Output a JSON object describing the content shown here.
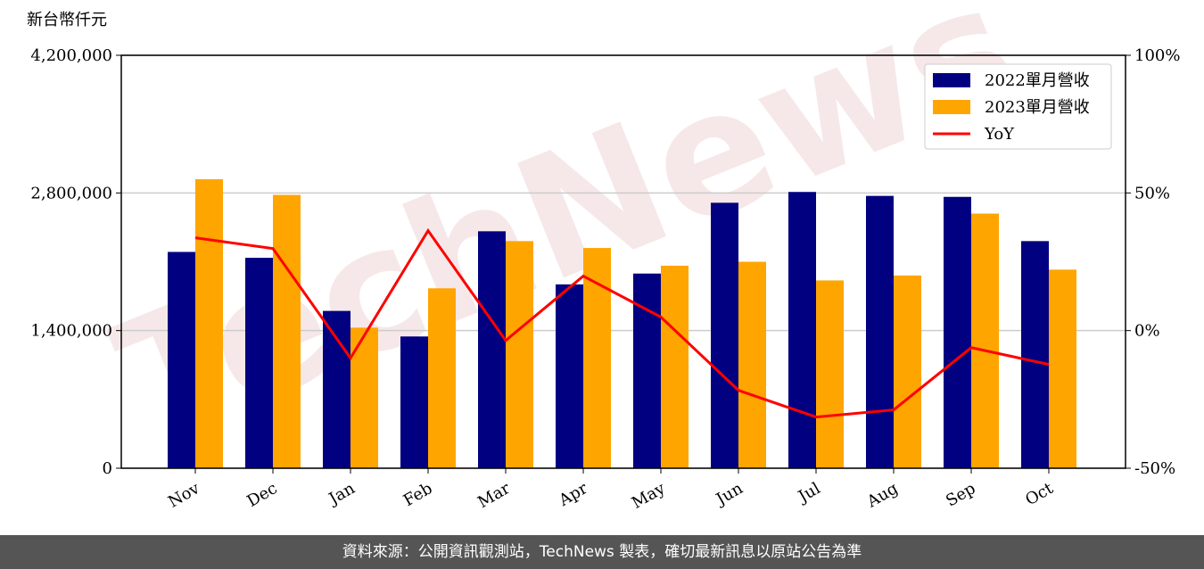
{
  "chart_data": {
    "type": "bar",
    "y_label": "新台幣仟元",
    "watermark": "TechNews",
    "categories": [
      "Nov",
      "Dec",
      "Jan",
      "Feb",
      "Mar",
      "Apr",
      "May",
      "Jun",
      "Jul",
      "Aug",
      "Sep",
      "Oct"
    ],
    "series": [
      {
        "name": "2022單月營收",
        "color": "#000080",
        "values": [
          2200000,
          2140000,
          1600000,
          1340000,
          2410000,
          1870000,
          1980000,
          2700000,
          2810000,
          2770000,
          2760000,
          2310000
        ]
      },
      {
        "name": "2023單月營收",
        "color": "#ffa500",
        "values": [
          2940000,
          2780000,
          1430000,
          1830000,
          2310000,
          2240000,
          2060000,
          2100000,
          1910000,
          1960000,
          2590000,
          2020000
        ]
      },
      {
        "name": "YoY",
        "color": "#ff0000",
        "type": "line",
        "axis": "y2",
        "values": [
          33.7,
          29.8,
          -10,
          36.3,
          -3.6,
          19.8,
          4.9,
          -21.7,
          -31.4,
          -28.8,
          -6.2,
          -12.3
        ]
      }
    ],
    "ylim": [
      0,
      4200000
    ],
    "yticks": [
      0,
      {
        "value": 1400000,
        "label": "1,400,000"
      },
      {
        "value": 2800000,
        "label": "2,800,000"
      },
      {
        "value": 4200000,
        "label": "4,200,000"
      }
    ],
    "y2lim": [
      -50,
      100
    ],
    "y2ticks": [
      {
        "value": -50,
        "label": "-50%"
      },
      {
        "value": 0,
        "label": "0%"
      },
      {
        "value": 50,
        "label": "50%"
      },
      {
        "value": 100,
        "label": "100%"
      }
    ],
    "grid": true,
    "legend": "upper right"
  },
  "footer": "資料來源：公開資訊觀測站，TechNews 製表，確切最新訊息以原站公告為準"
}
